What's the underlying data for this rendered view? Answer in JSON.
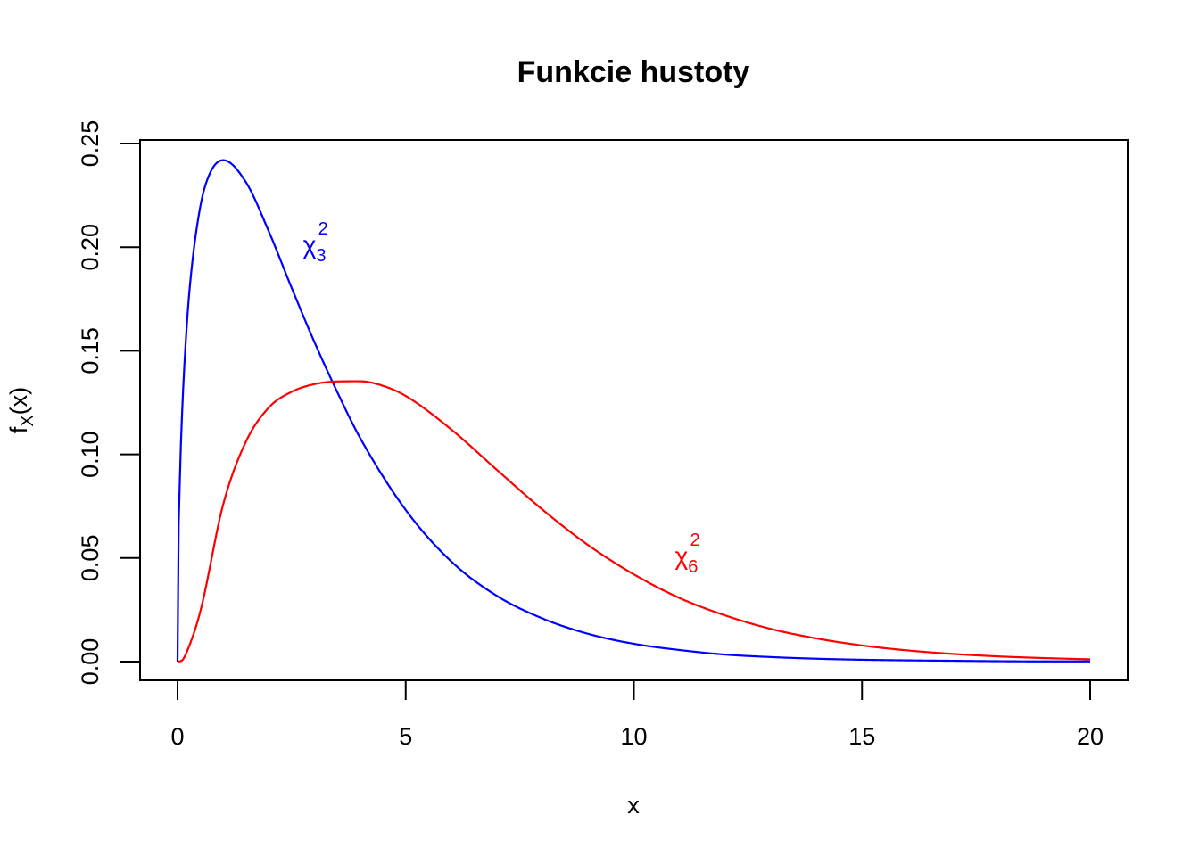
{
  "chart_data": {
    "type": "line",
    "title": "Funkcie hustoty",
    "xlabel": "x",
    "ylabel": {
      "base": "f",
      "sub": "X",
      "arg": "(x)"
    },
    "xlim": [
      0,
      20
    ],
    "ylim": [
      0,
      0.25
    ],
    "xticks": [
      "0",
      "5",
      "10",
      "15",
      "20"
    ],
    "yticks": [
      "0.00",
      "0.05",
      "0.10",
      "0.15",
      "0.20",
      "0.25"
    ],
    "grid": false,
    "series": [
      {
        "color": "#0000ff",
        "df": 3,
        "x": [
          0,
          0.01,
          0.05,
          0.1,
          0.2,
          0.3,
          0.5,
          0.7,
          1,
          1.5,
          2,
          2.5,
          3,
          3.5,
          4,
          5,
          6,
          7,
          8,
          9,
          10,
          11,
          12,
          13,
          14,
          15,
          16,
          17,
          18,
          19,
          20
        ],
        "values": [
          0,
          0.0395,
          0.087,
          0.12,
          0.1614,
          0.1878,
          0.2197,
          0.2352,
          0.242,
          0.2313,
          0.2076,
          0.1804,
          0.1542,
          0.1301,
          0.108,
          0.0732,
          0.0483,
          0.0317,
          0.0208,
          0.0134,
          0.0086,
          0.0056,
          0.0034,
          0.0022,
          0.0014,
          0.0009,
          0.0006,
          0.0004,
          0.0002,
          0.0001,
          0.0001
        ]
      },
      {
        "color": "#ff0000",
        "df": 6,
        "x": [
          0,
          0.1,
          0.2,
          0.5,
          1,
          1.5,
          2,
          2.5,
          3,
          3.5,
          4,
          4.5,
          5,
          6,
          7,
          8,
          9,
          10,
          11,
          12,
          13,
          14,
          15,
          16,
          17,
          18,
          19,
          20
        ],
        "values": [
          0,
          0.0006,
          0.0045,
          0.0243,
          0.0758,
          0.1062,
          0.1226,
          0.1302,
          0.1339,
          0.1352,
          0.1353,
          0.1331,
          0.1282,
          0.112,
          0.0925,
          0.0733,
          0.0562,
          0.0421,
          0.0307,
          0.0223,
          0.0158,
          0.0112,
          0.0078,
          0.0054,
          0.0037,
          0.0025,
          0.0017,
          0.0011
        ]
      }
    ],
    "annotations": [
      {
        "symbol": "χ",
        "sup": "2",
        "sub": "3",
        "x": 2.75,
        "y": 0.197,
        "color": "#0000ff"
      },
      {
        "symbol": "χ",
        "sup": "2",
        "sub": "6",
        "x": 10.9,
        "y": 0.047,
        "color": "#ff0000"
      }
    ]
  }
}
